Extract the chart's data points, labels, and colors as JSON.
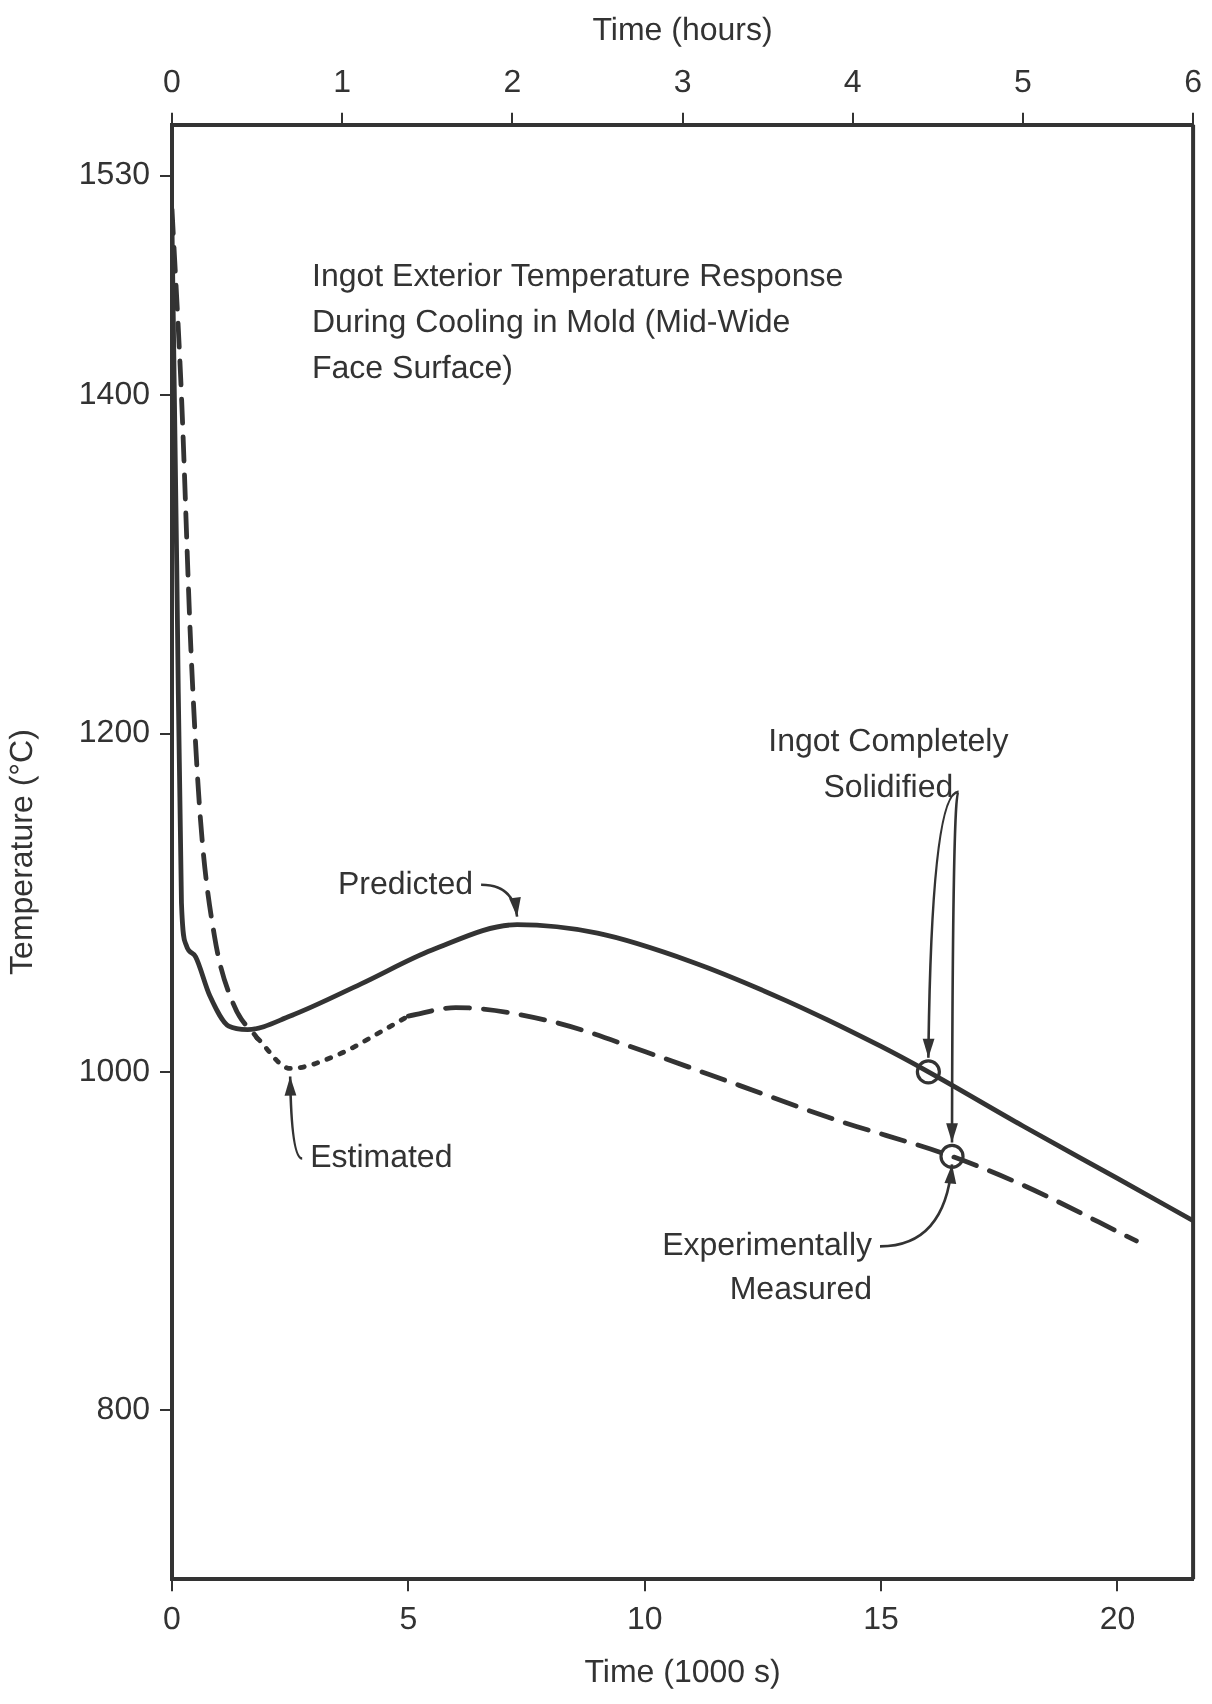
{
  "chart_data": {
    "type": "line",
    "title": "Ingot Exterior Temperature Response\nDuring Cooling in Mold (Mid-Wide\nFace Surface)",
    "xlabel": "Time (1000 s)",
    "ylabel": "Temperature (°C)",
    "x2label": "Time (hours)",
    "xlim": [
      0,
      21.6
    ],
    "xticks": [
      0,
      5,
      10,
      15,
      20
    ],
    "x2lim": [
      0,
      6
    ],
    "x2ticks": [
      0,
      1,
      2,
      3,
      4,
      5,
      6
    ],
    "ylim": [
      700,
      1560
    ],
    "yticks": [
      800,
      1000,
      1200,
      1400,
      1530
    ],
    "series": [
      {
        "type": "line",
        "name": "Predicted",
        "color": "#333333",
        "line_style": "solid",
        "x": [
          0,
          0.1,
          0.2,
          0.3,
          0.5,
          0.8,
          1.2,
          1.6,
          2.5,
          4,
          5.5,
          7.3,
          9,
          11,
          13,
          15,
          16,
          18,
          20,
          21.6
        ],
        "values": [
          1500,
          1300,
          1100,
          1075,
          1068,
          1045,
          1027,
          1025,
          1033,
          1052,
          1072,
          1087,
          1082,
          1065,
          1042,
          1015,
          1000,
          968,
          937,
          912
        ]
      },
      {
        "type": "line",
        "name": "Estimated",
        "color": "#333333",
        "line_style": "dotted",
        "x": [
          1.8,
          2.5,
          3.5,
          4.5,
          5
        ],
        "values": [
          1020,
          1002,
          1010,
          1025,
          1033
        ]
      },
      {
        "type": "line",
        "name": "Experimentally Measured",
        "color": "#333333",
        "line_style": "dashed",
        "x": [
          0,
          0.2,
          0.4,
          0.6,
          0.9,
          1.3,
          1.8,
          3,
          5,
          6,
          8,
          10,
          12,
          14,
          16.5,
          18,
          20.4
        ],
        "values": [
          1510,
          1400,
          1250,
          1150,
          1080,
          1040,
          1020,
          null,
          1033,
          1038,
          1030,
          1012,
          992,
          972,
          950,
          933,
          900
        ]
      },
      {
        "type": "scatter",
        "color": "#333333",
        "marker": "circle",
        "x": [
          16,
          16.5
        ],
        "values": [
          1000,
          950
        ]
      }
    ],
    "annotations": [
      {
        "text": "Ingot Completely\nSolidified",
        "x": 16,
        "y": 1000
      }
    ]
  }
}
